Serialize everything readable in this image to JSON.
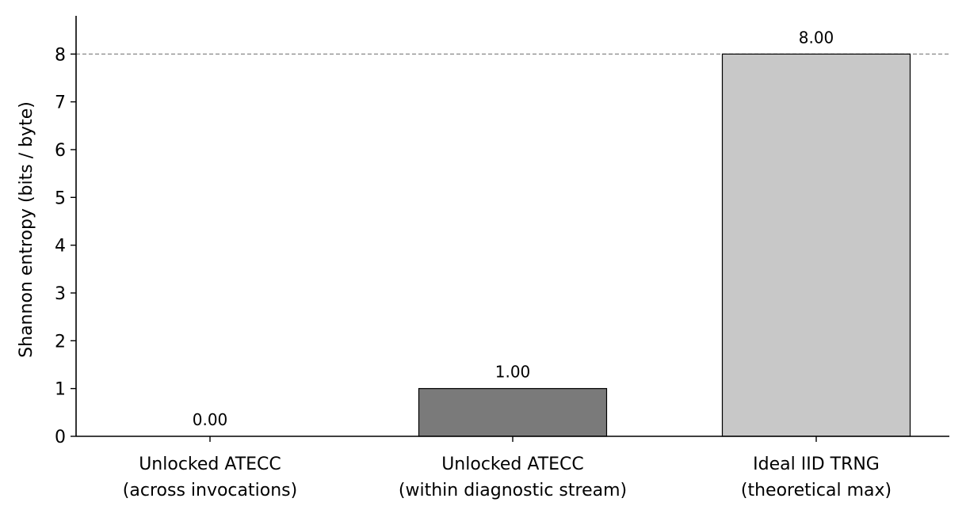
{
  "chart_data": {
    "type": "bar",
    "categories": [
      [
        "Unlocked ATECC",
        "(across invocations)"
      ],
      [
        "Unlocked ATECC",
        "(within diagnostic stream)"
      ],
      [
        "Ideal IID TRNG",
        "(theoretical max)"
      ]
    ],
    "values": [
      0.0,
      1.0,
      8.0
    ],
    "data_labels": [
      "0.00",
      "1.00",
      "8.00"
    ],
    "bar_colors": [
      "#7a7a7a",
      "#7a7a7a",
      "#c8c8c8"
    ],
    "reference_line": {
      "value": 8,
      "style": "dashed",
      "color": "#888888"
    },
    "ylabel": "Shannon entropy (bits / byte)",
    "xlabel": "",
    "title": "",
    "ylim": [
      0,
      8.8
    ],
    "yticks": [
      0,
      1,
      2,
      3,
      4,
      5,
      6,
      7,
      8
    ],
    "grid": false,
    "legend": "none"
  }
}
